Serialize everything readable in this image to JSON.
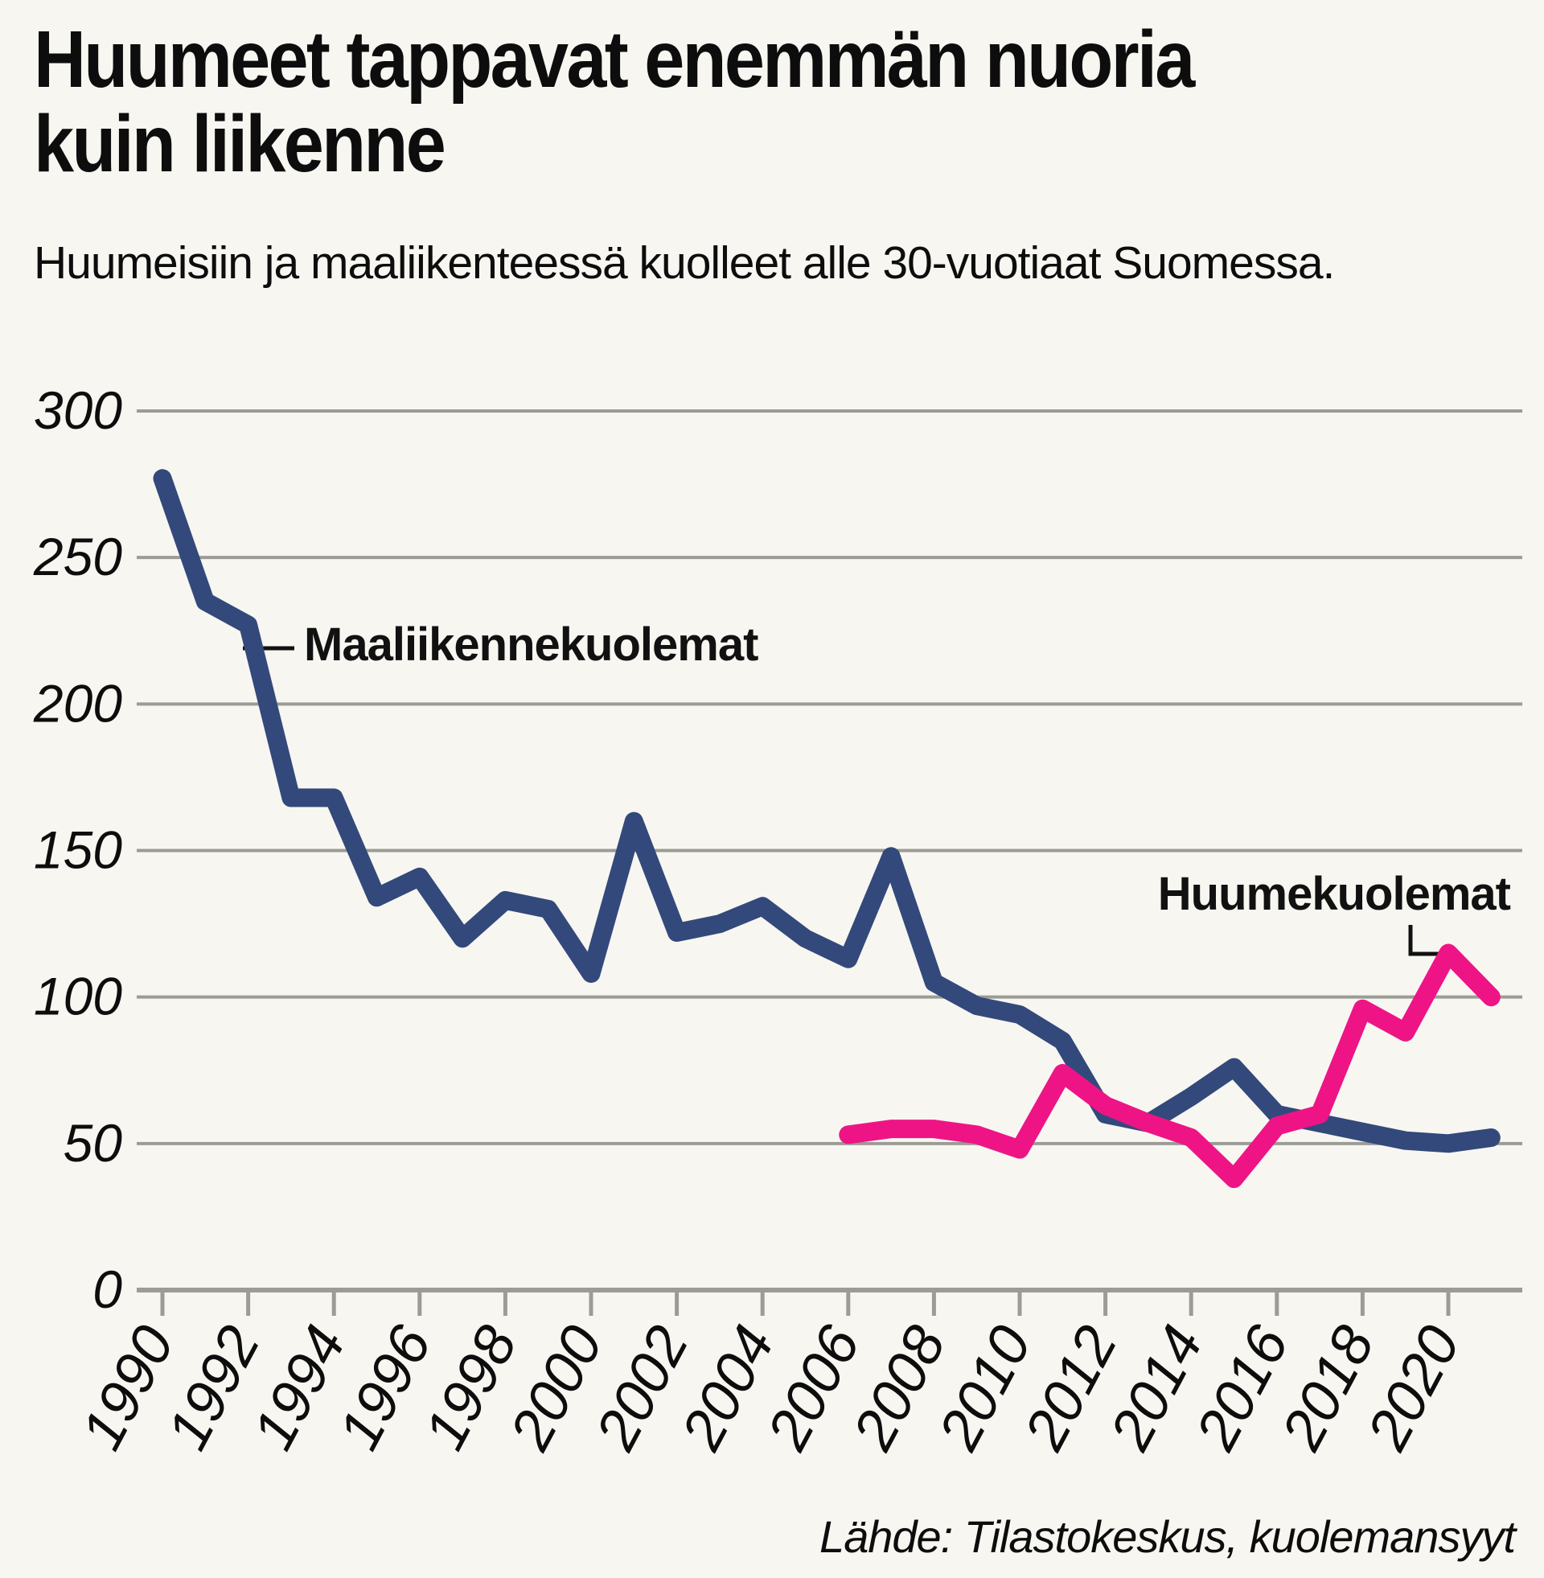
{
  "title": "Huumeet tappavat enemmän nuoria kuin liikenne",
  "subtitle": "Huumeisiin ja maaliikenteessä kuolleet alle 30-vuotiaat Suomessa.",
  "source": "Lähde: Tilastokeskus, kuolemansyyt",
  "colors": {
    "traffic": "#33497B",
    "drugs": "#EE1486",
    "grid": "#9C9C96",
    "annotation": "#111111",
    "text": "#0D0D0D",
    "background": "#F7F6F1"
  },
  "chart_data": {
    "type": "line",
    "title": "Huumeet tappavat enemmän nuoria kuin liikenne",
    "subtitle": "Huumeisiin ja maaliikenteessä kuolleet alle 30-vuotiaat Suomessa.",
    "source": "Lähde: Tilastokeskus, kuolemansyyt",
    "xlabel": "",
    "ylabel": "",
    "xlim": [
      1990,
      2021
    ],
    "ylim": [
      0,
      300
    ],
    "yticks": [
      0,
      50,
      100,
      150,
      200,
      250,
      300
    ],
    "xticks": [
      1990,
      1992,
      1994,
      1996,
      1998,
      2000,
      2002,
      2004,
      2006,
      2008,
      2010,
      2012,
      2014,
      2016,
      2018,
      2020
    ],
    "grid": "horizontal",
    "legend_position": "inline-annotations",
    "series": [
      {
        "name": "Maaliikennekuolemat",
        "color": "#33497B",
        "years": [
          1990,
          1991,
          1992,
          1993,
          1994,
          1995,
          1996,
          1997,
          1998,
          1999,
          2000,
          2001,
          2002,
          2003,
          2004,
          2005,
          2006,
          2007,
          2008,
          2009,
          2010,
          2011,
          2012,
          2013,
          2014,
          2015,
          2016,
          2017,
          2018,
          2019,
          2020,
          2021
        ],
        "values": [
          277,
          235,
          227,
          168,
          168,
          134,
          141,
          120,
          133,
          130,
          108,
          160,
          122,
          125,
          131,
          120,
          113,
          148,
          105,
          97,
          94,
          85,
          60,
          57,
          66,
          76,
          60,
          57,
          54,
          51,
          50,
          52
        ]
      },
      {
        "name": "Huumekuolemat",
        "color": "#EE1486",
        "years": [
          2006,
          2007,
          2008,
          2009,
          2010,
          2011,
          2012,
          2013,
          2014,
          2015,
          2016,
          2017,
          2018,
          2019,
          2020,
          2021
        ],
        "values": [
          53,
          55,
          55,
          53,
          48,
          74,
          63,
          57,
          52,
          38,
          56,
          60,
          96,
          88,
          115,
          100
        ]
      }
    ]
  }
}
